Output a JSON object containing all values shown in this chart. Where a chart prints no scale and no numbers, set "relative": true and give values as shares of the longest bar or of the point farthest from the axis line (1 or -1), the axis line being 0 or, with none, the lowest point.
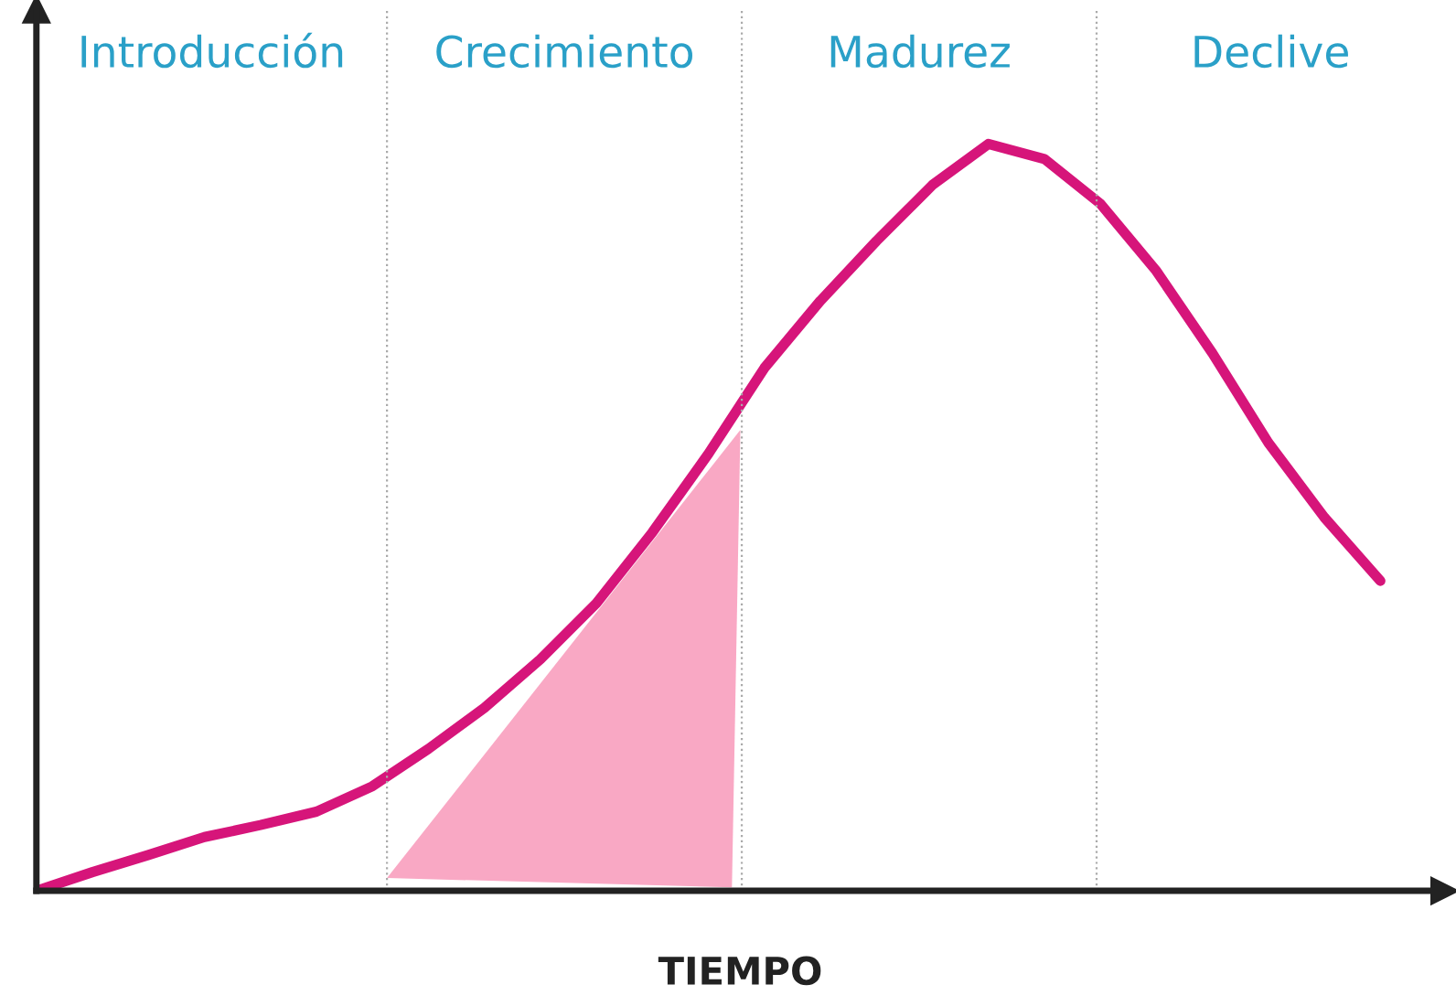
{
  "chart_data": {
    "type": "line",
    "relative": true,
    "xlabel": "TIEMPO",
    "categories": [
      null,
      null,
      null,
      null,
      null,
      null,
      null,
      null,
      null,
      null,
      null,
      null,
      null,
      null,
      null,
      null,
      null,
      null,
      null,
      null,
      null,
      null,
      null,
      null,
      null
    ],
    "series": [
      {
        "color": "#d6157a",
        "values": [
          0,
          0.025,
          0.048,
          0.072,
          0.088,
          0.106,
          0.14,
          0.19,
          0.245,
          0.31,
          0.385,
          0.48,
          0.585,
          0.7,
          0.79,
          0.87,
          0.945,
          1,
          0.98,
          0.92,
          0.83,
          0.72,
          0.6,
          0.5,
          0.415
        ]
      }
    ],
    "annotations": [
      "Introducción",
      "Crecimiento",
      "Madurez",
      "Declive"
    ],
    "grid": false,
    "legend": false,
    "marker": "none",
    "line_style": "solid"
  }
}
